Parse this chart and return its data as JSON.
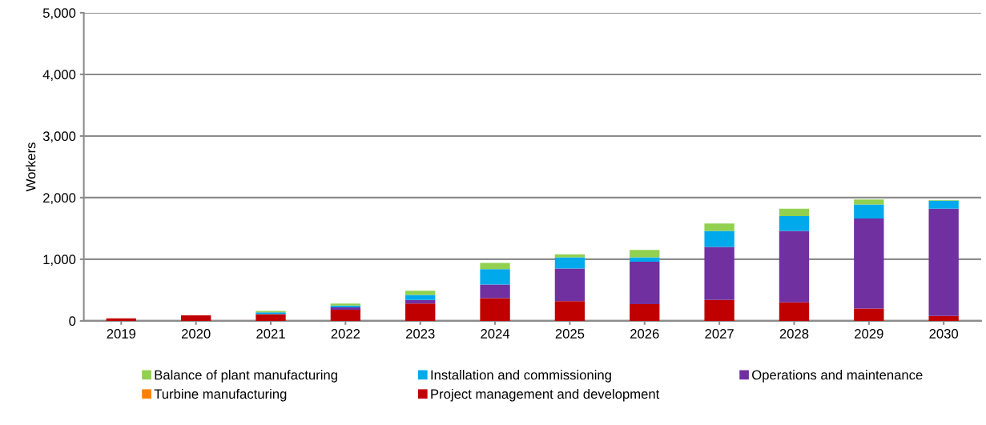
{
  "chart_data": {
    "type": "bar",
    "stacked": true,
    "ylabel": "Workers",
    "categories": [
      "2019",
      "2020",
      "2021",
      "2022",
      "2023",
      "2024",
      "2025",
      "2026",
      "2027",
      "2028",
      "2029",
      "2030"
    ],
    "series": [
      {
        "name": "Project management and development",
        "color": "#c00000",
        "values": [
          40,
          90,
          110,
          180,
          280,
          370,
          320,
          270,
          340,
          300,
          200,
          80
        ]
      },
      {
        "name": "Turbine manufacturing",
        "color": "#ff7f00",
        "values": [
          0,
          0,
          0,
          0,
          0,
          0,
          0,
          0,
          0,
          0,
          0,
          0
        ]
      },
      {
        "name": "Operations and maintenance",
        "color": "#7030a0",
        "values": [
          0,
          0,
          0,
          40,
          60,
          220,
          530,
          690,
          860,
          1160,
          1460,
          1740
        ]
      },
      {
        "name": "Installation and commissioning",
        "color": "#00a9ec",
        "values": [
          0,
          0,
          30,
          30,
          80,
          250,
          180,
          70,
          260,
          240,
          230,
          130
        ]
      },
      {
        "name": "Balance of plant manufacturing",
        "color": "#92d050",
        "values": [
          0,
          0,
          20,
          30,
          70,
          100,
          50,
          120,
          120,
          120,
          80,
          10
        ]
      }
    ],
    "ylim": [
      0,
      5000
    ],
    "yticks": [
      {
        "value": 0,
        "label": "0"
      },
      {
        "value": 1000,
        "label": "1,000"
      },
      {
        "value": 2000,
        "label": "2,000"
      },
      {
        "value": 3000,
        "label": "3,000"
      },
      {
        "value": 4000,
        "label": "4,000"
      },
      {
        "value": 5000,
        "label": "5,000"
      }
    ],
    "grid": "y",
    "legend": "bottom"
  }
}
